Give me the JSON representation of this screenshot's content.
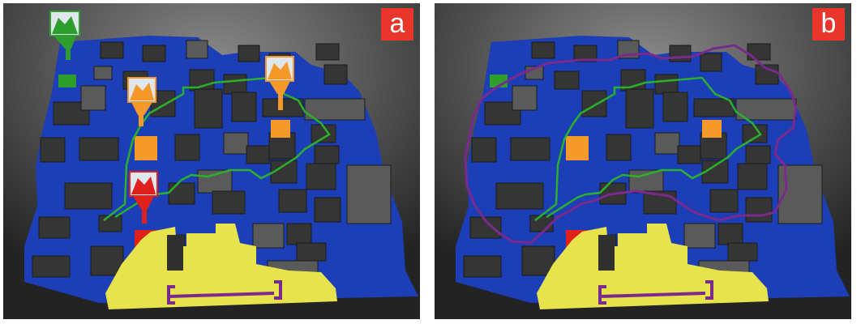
{
  "panels": [
    {
      "label": "a",
      "shows_markers": true,
      "shows_green_path": true,
      "shows_purple_outline": false
    },
    {
      "label": "b",
      "shows_markers": false,
      "shows_green_path": true,
      "shows_purple_outline": true
    }
  ],
  "colors": {
    "floor": "#1c3fb8",
    "block": "#353535",
    "block_light": "#5a5a5a",
    "yellow_zone": "#e7e34c",
    "green": "#2e9e2e",
    "orange": "#f59a2a",
    "red": "#e0201c",
    "purple": "#7a2a8c",
    "badge": "#e8362a"
  },
  "icons": [
    "green-marker-icon",
    "orange-marker-icon",
    "red-marker-icon"
  ]
}
